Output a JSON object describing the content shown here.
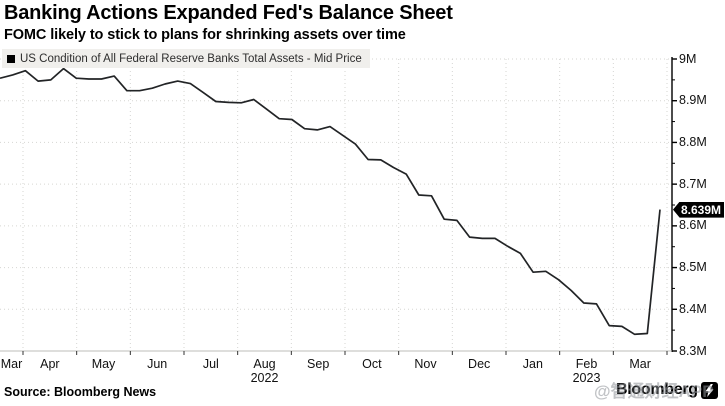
{
  "header": {
    "title": "Banking Actions Expanded Fed's Balance Sheet",
    "subtitle": "FOMC likely to stick to plans for shrinking assets over time"
  },
  "legend": {
    "label": "US Condition of All Federal Reserve Banks Total Assets - Mid Price"
  },
  "footer": {
    "source": "Source: Bloomberg News",
    "brand_wordmark": "Bloomberg",
    "watermark": "@智通财经APP"
  },
  "colors": {
    "line": "#222426",
    "grid": "#d6d6d2",
    "axis": "#000000",
    "baseline": "#bdbdb8",
    "legend_bg": "#f0efec",
    "badge_bg": "#000000",
    "badge_text": "#ffffff"
  },
  "chart_data": {
    "type": "line",
    "title": "US Condition of All Federal Reserve Banks Total Assets - Mid Price",
    "grid": "dotted",
    "legend_position": "top-left",
    "x_unit": "week",
    "x": [
      "2022-03-16",
      "2022-03-23",
      "2022-03-30",
      "2022-04-06",
      "2022-04-13",
      "2022-04-20",
      "2022-04-27",
      "2022-05-04",
      "2022-05-11",
      "2022-05-18",
      "2022-05-25",
      "2022-06-01",
      "2022-06-08",
      "2022-06-15",
      "2022-06-22",
      "2022-06-29",
      "2022-07-06",
      "2022-07-13",
      "2022-07-20",
      "2022-07-27",
      "2022-08-03",
      "2022-08-10",
      "2022-08-17",
      "2022-08-24",
      "2022-08-31",
      "2022-09-07",
      "2022-09-14",
      "2022-09-21",
      "2022-09-28",
      "2022-10-05",
      "2022-10-12",
      "2022-10-19",
      "2022-10-26",
      "2022-11-02",
      "2022-11-09",
      "2022-11-16",
      "2022-11-23",
      "2022-11-30",
      "2022-12-07",
      "2022-12-14",
      "2022-12-21",
      "2022-12-28",
      "2023-01-04",
      "2023-01-11",
      "2023-01-18",
      "2023-01-25",
      "2023-02-01",
      "2023-02-08",
      "2023-02-15",
      "2023-02-22",
      "2023-03-01",
      "2023-03-08",
      "2023-03-15"
    ],
    "series": [
      {
        "name": "US Condition of All Federal Reserve Banks Total Assets - Mid Price",
        "values": [
          8.954,
          8.962,
          8.972,
          8.947,
          8.95,
          8.977,
          8.954,
          8.952,
          8.952,
          8.959,
          8.924,
          8.924,
          8.93,
          8.94,
          8.947,
          8.941,
          8.92,
          8.898,
          8.896,
          8.895,
          8.903,
          8.88,
          8.857,
          8.855,
          8.833,
          8.83,
          8.838,
          8.817,
          8.796,
          8.759,
          8.758,
          8.74,
          8.724,
          8.674,
          8.672,
          8.616,
          8.613,
          8.573,
          8.57,
          8.57,
          8.551,
          8.534,
          8.489,
          8.491,
          8.471,
          8.445,
          8.415,
          8.413,
          8.361,
          8.359,
          8.34,
          8.342,
          8.639
        ]
      }
    ],
    "y_axis": {
      "side": "right",
      "unit": "M",
      "range": [
        8.3,
        9.0
      ],
      "tick_values": [
        9.0,
        8.9,
        8.8,
        8.7,
        8.6,
        8.5,
        8.4,
        8.3
      ],
      "tick_labels": [
        "9M",
        "8.9M",
        "8.8M",
        "8.7M",
        "8.6M",
        "8.5M",
        "8.4M",
        "8.3M"
      ]
    },
    "x_axis": {
      "month_labels": [
        "Mar",
        "Apr",
        "May",
        "Jun",
        "Jul",
        "Aug",
        "Sep",
        "Oct",
        "Nov",
        "Dec",
        "Jan",
        "Feb",
        "Mar"
      ],
      "year_labels": [
        {
          "text": "2022",
          "month_index": 5
        },
        {
          "text": "2023",
          "month_index": 11
        }
      ]
    },
    "annotation": {
      "label": "8.639M",
      "value": 8.639,
      "position": "last-point"
    }
  }
}
